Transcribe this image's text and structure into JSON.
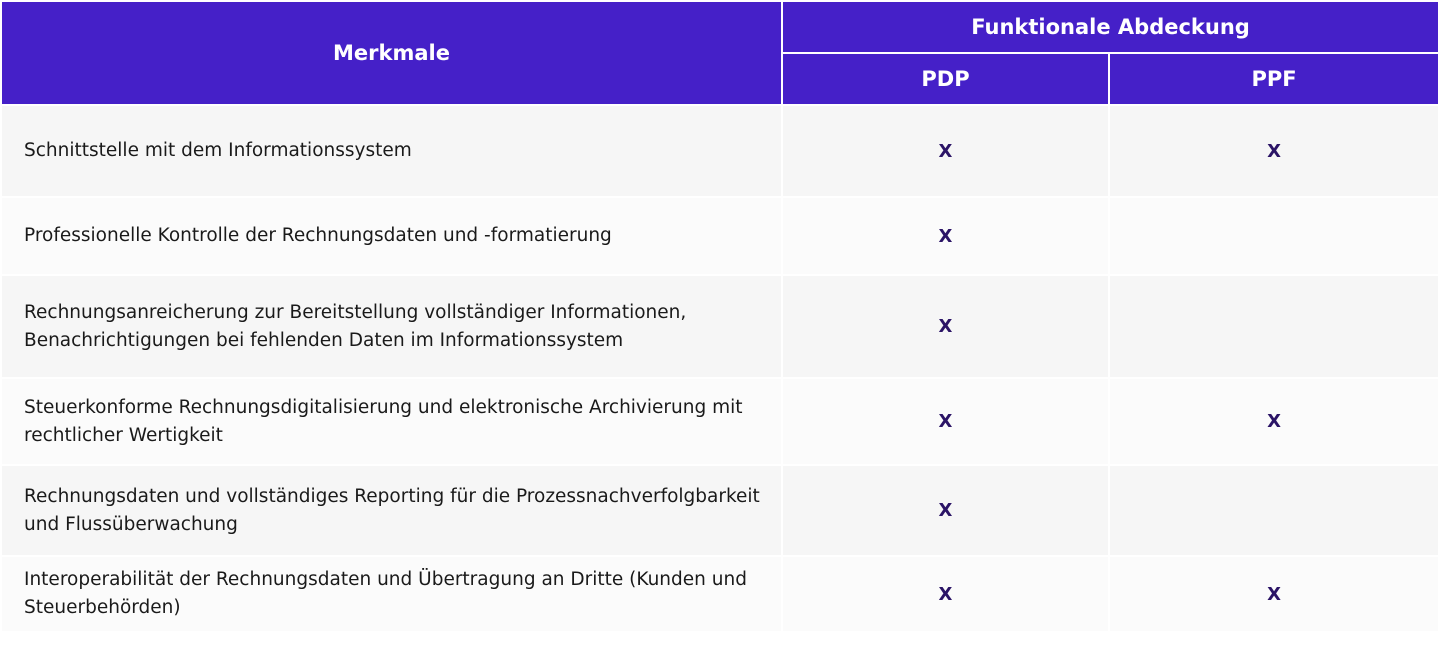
{
  "header": {
    "features_label": "Merkmale",
    "coverage_label": "Funktionale Abdeckung",
    "col_pdp": "PDP",
    "col_ppf": "PPF"
  },
  "rows": [
    {
      "feature": "Schnittstelle mit dem Informationssystem",
      "pdp": "X",
      "ppf": "X"
    },
    {
      "feature": "Professionelle Kontrolle der Rechnungsdaten und -formatierung",
      "pdp": "X",
      "ppf": ""
    },
    {
      "feature": "Rechnungsanreicherung zur Bereitstellung vollständiger Informationen, Benachrichtigungen bei fehlenden Daten im Informationssystem",
      "pdp": "X",
      "ppf": ""
    },
    {
      "feature": "Steuerkonforme Rechnungsdigitalisierung und elektronische Archivierung mit rechtlicher Wertigkeit",
      "pdp": "X",
      "ppf": "X"
    },
    {
      "feature": "Rechnungsdaten und vollständiges Reporting für die Prozessnachverfolgbarkeit und Flussüberwachung",
      "pdp": "X",
      "ppf": ""
    },
    {
      "feature": "Interoperabilität der Rechnungsdaten und Übertragung an Dritte (Kunden und Steuerbehörden)",
      "pdp": "X",
      "ppf": "X"
    }
  ],
  "colors": {
    "header_bg": "#4520c8",
    "mark_color": "#2b1466"
  }
}
